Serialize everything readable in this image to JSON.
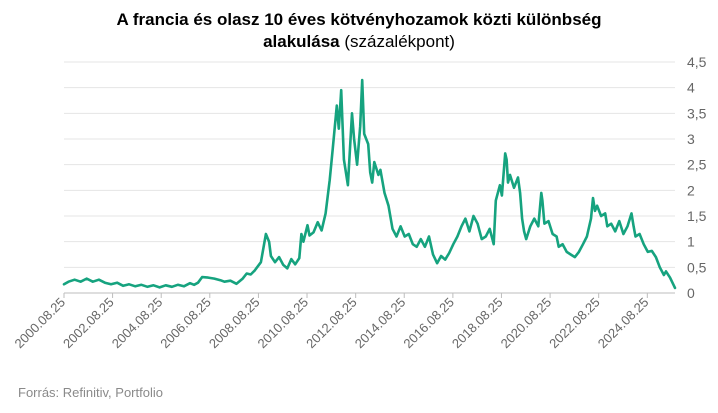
{
  "chart_data": {
    "type": "line",
    "title_line1": "A francia és olasz 10 éves kötvényhozamok közti különbség",
    "title_line2_bold": "alakulása",
    "title_line2_rest": "(százalékpont)",
    "source": "Forrás: Refinitiv, Portfolio",
    "xlabel": "",
    "ylabel": "",
    "ylim": [
      0,
      4.5
    ],
    "yticks": [
      {
        "value": 0,
        "label": "0"
      },
      {
        "value": 0.5,
        "label": "0,5"
      },
      {
        "value": 1,
        "label": "1"
      },
      {
        "value": 1.5,
        "label": "1,5"
      },
      {
        "value": 2,
        "label": "2"
      },
      {
        "value": 2.5,
        "label": "2,5"
      },
      {
        "value": 3,
        "label": "3"
      },
      {
        "value": 3.5,
        "label": "3,5"
      },
      {
        "value": 4,
        "label": "4"
      },
      {
        "value": 4.5,
        "label": "4,5"
      }
    ],
    "xlim": [
      "2000.08.25",
      "2025.10.15"
    ],
    "xticks": [
      "2000.08.25",
      "2002.08.25",
      "2004.08.25",
      "2006.08.25",
      "2008.08.25",
      "2010.08.25",
      "2012.08.25",
      "2014.08.25",
      "2016.08.25",
      "2018.08.25",
      "2020.08.25",
      "2022.08.25",
      "2024.08.25"
    ],
    "grid": "horizontal",
    "line_color": "#16a37f",
    "series": [
      {
        "points": [
          [
            "2000.08.25",
            0.17
          ],
          [
            "2000.11.01",
            0.22
          ],
          [
            "2001.02.01",
            0.26
          ],
          [
            "2001.05.01",
            0.22
          ],
          [
            "2001.08.01",
            0.28
          ],
          [
            "2001.11.01",
            0.22
          ],
          [
            "2002.02.01",
            0.26
          ],
          [
            "2002.05.01",
            0.2
          ],
          [
            "2002.08.01",
            0.17
          ],
          [
            "2002.11.01",
            0.2
          ],
          [
            "2003.02.01",
            0.14
          ],
          [
            "2003.05.01",
            0.17
          ],
          [
            "2003.08.01",
            0.13
          ],
          [
            "2003.11.01",
            0.16
          ],
          [
            "2004.02.01",
            0.12
          ],
          [
            "2004.05.01",
            0.15
          ],
          [
            "2004.08.01",
            0.11
          ],
          [
            "2004.11.01",
            0.15
          ],
          [
            "2005.02.01",
            0.12
          ],
          [
            "2005.05.01",
            0.16
          ],
          [
            "2005.08.01",
            0.13
          ],
          [
            "2005.11.01",
            0.19
          ],
          [
            "2006.01.01",
            0.16
          ],
          [
            "2006.03.01",
            0.2
          ],
          [
            "2006.05.01",
            0.31
          ],
          [
            "2006.08.01",
            0.3
          ],
          [
            "2006.11.01",
            0.28
          ],
          [
            "2007.02.01",
            0.25
          ],
          [
            "2007.04.01",
            0.22
          ],
          [
            "2007.07.01",
            0.24
          ],
          [
            "2007.10.01",
            0.18
          ],
          [
            "2008.01.01",
            0.28
          ],
          [
            "2008.03.01",
            0.38
          ],
          [
            "2008.05.01",
            0.36
          ],
          [
            "2008.07.01",
            0.44
          ],
          [
            "2008.10.01",
            0.6
          ],
          [
            "2008.12.15",
            1.15
          ],
          [
            "2009.02.01",
            1.0
          ],
          [
            "2009.03.01",
            0.72
          ],
          [
            "2009.05.01",
            0.6
          ],
          [
            "2009.07.01",
            0.7
          ],
          [
            "2009.09.01",
            0.55
          ],
          [
            "2009.11.01",
            0.48
          ],
          [
            "2010.01.01",
            0.66
          ],
          [
            "2010.03.01",
            0.56
          ],
          [
            "2010.05.01",
            0.68
          ],
          [
            "2010.06.01",
            1.15
          ],
          [
            "2010.07.01",
            1.0
          ],
          [
            "2010.09.01",
            1.32
          ],
          [
            "2010.10.01",
            1.12
          ],
          [
            "2010.12.01",
            1.18
          ],
          [
            "2011.02.01",
            1.38
          ],
          [
            "2011.04.01",
            1.22
          ],
          [
            "2011.06.01",
            1.55
          ],
          [
            "2011.08.01",
            2.2
          ],
          [
            "2011.09.15",
            2.8
          ],
          [
            "2011.11.15",
            3.65
          ],
          [
            "2011.12.15",
            3.2
          ],
          [
            "2012.01.20",
            3.95
          ],
          [
            "2012.03.01",
            2.6
          ],
          [
            "2012.05.01",
            2.1
          ],
          [
            "2012.07.01",
            3.5
          ],
          [
            "2012.08.01",
            3.0
          ],
          [
            "2012.09.15",
            2.5
          ],
          [
            "2012.11.01",
            3.25
          ],
          [
            "2012.12.01",
            4.15
          ],
          [
            "2013.01.01",
            3.1
          ],
          [
            "2013.03.01",
            2.9
          ],
          [
            "2013.04.01",
            2.35
          ],
          [
            "2013.05.01",
            2.15
          ],
          [
            "2013.06.01",
            2.55
          ],
          [
            "2013.08.01",
            2.3
          ],
          [
            "2013.09.01",
            2.4
          ],
          [
            "2013.11.01",
            1.95
          ],
          [
            "2014.01.01",
            1.7
          ],
          [
            "2014.03.01",
            1.25
          ],
          [
            "2014.05.01",
            1.1
          ],
          [
            "2014.07.01",
            1.3
          ],
          [
            "2014.09.01",
            1.1
          ],
          [
            "2014.11.01",
            1.15
          ],
          [
            "2015.01.01",
            0.95
          ],
          [
            "2015.03.01",
            0.9
          ],
          [
            "2015.05.01",
            1.05
          ],
          [
            "2015.07.01",
            0.9
          ],
          [
            "2015.09.01",
            1.1
          ],
          [
            "2015.11.01",
            0.75
          ],
          [
            "2016.01.01",
            0.58
          ],
          [
            "2016.03.01",
            0.72
          ],
          [
            "2016.05.01",
            0.65
          ],
          [
            "2016.07.01",
            0.78
          ],
          [
            "2016.09.01",
            0.95
          ],
          [
            "2016.11.01",
            1.1
          ],
          [
            "2017.01.01",
            1.3
          ],
          [
            "2017.03.01",
            1.45
          ],
          [
            "2017.05.01",
            1.2
          ],
          [
            "2017.07.01",
            1.5
          ],
          [
            "2017.09.01",
            1.35
          ],
          [
            "2017.11.01",
            1.05
          ],
          [
            "2018.01.01",
            1.1
          ],
          [
            "2018.03.01",
            1.25
          ],
          [
            "2018.05.01",
            0.95
          ],
          [
            "2018.06.01",
            1.8
          ],
          [
            "2018.08.01",
            2.1
          ],
          [
            "2018.09.01",
            1.9
          ],
          [
            "2018.10.20",
            2.72
          ],
          [
            "2018.11.10",
            2.6
          ],
          [
            "2018.12.01",
            2.15
          ],
          [
            "2019.01.01",
            2.3
          ],
          [
            "2019.03.01",
            2.05
          ],
          [
            "2019.05.01",
            2.25
          ],
          [
            "2019.06.01",
            1.95
          ],
          [
            "2019.07.01",
            1.45
          ],
          [
            "2019.08.01",
            1.2
          ],
          [
            "2019.09.01",
            1.05
          ],
          [
            "2019.11.01",
            1.3
          ],
          [
            "2020.01.01",
            1.45
          ],
          [
            "2020.03.01",
            1.3
          ],
          [
            "2020.04.15",
            1.95
          ],
          [
            "2020.05.01",
            1.8
          ],
          [
            "2020.06.01",
            1.35
          ],
          [
            "2020.08.01",
            1.4
          ],
          [
            "2020.10.01",
            1.15
          ],
          [
            "2020.12.01",
            1.1
          ],
          [
            "2021.01.01",
            0.9
          ],
          [
            "2021.03.01",
            0.95
          ],
          [
            "2021.05.01",
            0.8
          ],
          [
            "2021.07.01",
            0.75
          ],
          [
            "2021.09.01",
            0.7
          ],
          [
            "2021.11.01",
            0.8
          ],
          [
            "2022.01.01",
            0.95
          ],
          [
            "2022.03.01",
            1.1
          ],
          [
            "2022.05.01",
            1.45
          ],
          [
            "2022.06.01",
            1.85
          ],
          [
            "2022.07.01",
            1.6
          ],
          [
            "2022.08.01",
            1.7
          ],
          [
            "2022.10.01",
            1.5
          ],
          [
            "2022.12.01",
            1.55
          ],
          [
            "2023.01.01",
            1.3
          ],
          [
            "2023.03.01",
            1.35
          ],
          [
            "2023.05.01",
            1.2
          ],
          [
            "2023.07.01",
            1.4
          ],
          [
            "2023.09.01",
            1.15
          ],
          [
            "2023.11.01",
            1.3
          ],
          [
            "2024.01.01",
            1.55
          ],
          [
            "2024.02.01",
            1.3
          ],
          [
            "2024.03.01",
            1.1
          ],
          [
            "2024.05.01",
            1.15
          ],
          [
            "2024.07.01",
            0.95
          ],
          [
            "2024.09.01",
            0.8
          ],
          [
            "2024.11.01",
            0.82
          ],
          [
            "2025.01.01",
            0.7
          ],
          [
            "2025.03.01",
            0.5
          ],
          [
            "2025.05.01",
            0.35
          ],
          [
            "2025.06.01",
            0.42
          ],
          [
            "2025.08.01",
            0.3
          ],
          [
            "2025.10.15",
            0.1
          ]
        ]
      }
    ]
  }
}
